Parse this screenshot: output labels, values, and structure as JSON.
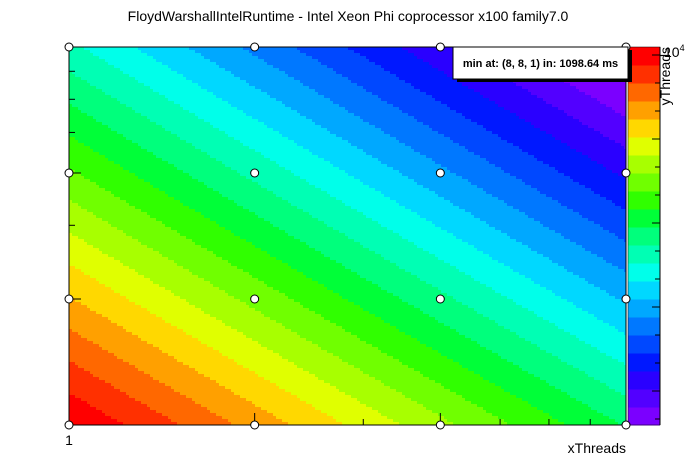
{
  "chart_data": {
    "type": "heatmap",
    "title": "FloydWarshallIntelRuntime - Intel Xeon Phi coprocessor x100 family7.0",
    "xlabel": "xThreads",
    "ylabel": "yThreads",
    "x_scale": "log",
    "y_scale": "log",
    "xlim": [
      1,
      8
    ],
    "ylim": [
      1,
      8
    ],
    "x_tick_labels": [
      {
        "value": 1,
        "label": "1"
      }
    ],
    "z_scale": "log",
    "z_axis_label": "10⁴",
    "z_axis_label_base": "10",
    "z_axis_label_exp": "4",
    "sample_points": [
      {
        "x": 1,
        "y": 1
      },
      {
        "x": 2,
        "y": 1
      },
      {
        "x": 4,
        "y": 1
      },
      {
        "x": 8,
        "y": 1
      },
      {
        "x": 1,
        "y": 2
      },
      {
        "x": 2,
        "y": 2
      },
      {
        "x": 4,
        "y": 2
      },
      {
        "x": 8,
        "y": 2
      },
      {
        "x": 1,
        "y": 4
      },
      {
        "x": 2,
        "y": 4
      },
      {
        "x": 4,
        "y": 4
      },
      {
        "x": 8,
        "y": 4
      },
      {
        "x": 1,
        "y": 8
      },
      {
        "x": 2,
        "y": 8
      },
      {
        "x": 4,
        "y": 8
      },
      {
        "x": 8,
        "y": 8
      }
    ],
    "annotation": "min at: (8, 8, 1) in: 1098.64 ms",
    "min_point": {
      "x": 8,
      "y": 8,
      "z": 1,
      "runtime_ms": 1098.64
    },
    "palette": [
      "#7b00ff",
      "#5200ff",
      "#2a00ff",
      "#0018ff",
      "#0048ff",
      "#0078ff",
      "#00a8ff",
      "#00d8ff",
      "#00ffea",
      "#00ffb4",
      "#00ff7c",
      "#00ff38",
      "#30ff00",
      "#70ff00",
      "#a8ff00",
      "#e0ff00",
      "#ffd800",
      "#ffa000",
      "#ff6800",
      "#ff3000",
      "#ff0000"
    ]
  }
}
